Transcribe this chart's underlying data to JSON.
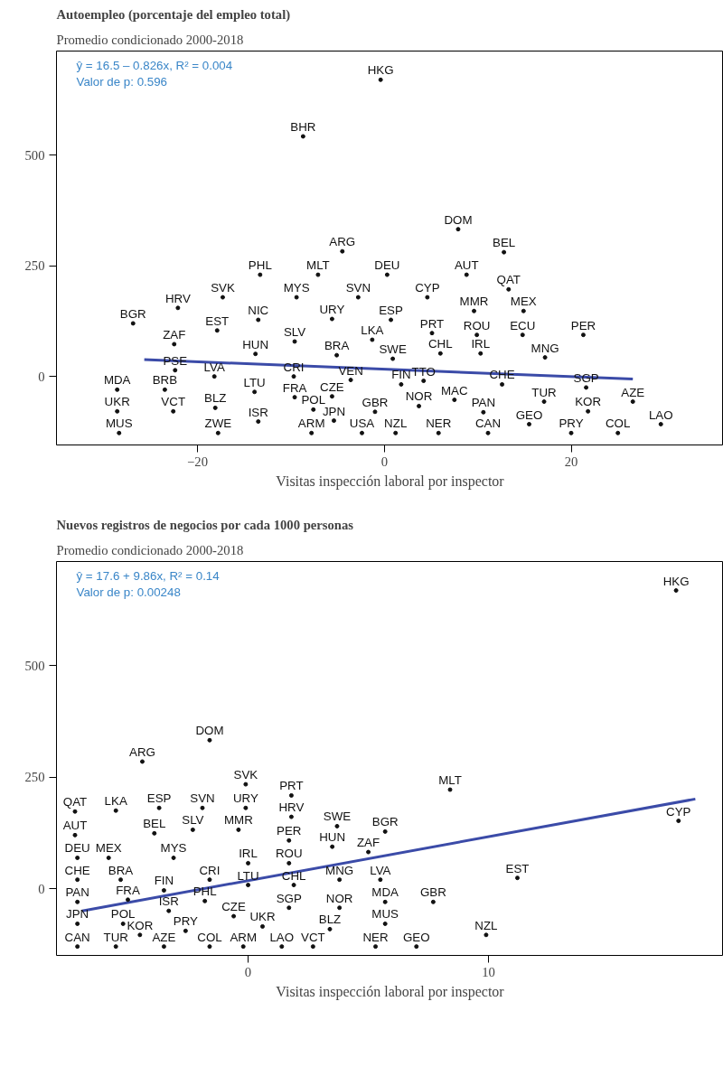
{
  "chart_data": [
    {
      "type": "scatter",
      "title": "Autoempleo (porcentaje del empleo total)",
      "subtitle": "Promedio condicionado 2000-2018",
      "xlabel": "Visitas inspección laboral por inspector",
      "xlim": [
        -35.1,
        36.3
      ],
      "ylim": [
        -155,
        736
      ],
      "xticks": [
        -20,
        0,
        20
      ],
      "yticks": [
        0,
        250,
        500
      ],
      "grid": false,
      "marker": "circle",
      "annotations": [
        "ŷ = 16.5 – 0.826x, R² = 0.004",
        "Valor de p: 0.596"
      ],
      "series": [
        {
          "type": "line",
          "color": "#3b4ba8",
          "marker": "none",
          "x": [
            -25.7,
            26.6
          ],
          "values": [
            38,
            -6
          ]
        },
        {
          "name": "HKG",
          "x": [
            -0.4
          ],
          "values": [
            671
          ]
        },
        {
          "name": "BHR",
          "x": [
            -8.7
          ],
          "values": [
            543
          ]
        },
        {
          "name": "DOM",
          "x": [
            7.9
          ],
          "values": [
            333
          ]
        },
        {
          "name": "ARG",
          "x": [
            -4.5
          ],
          "values": [
            283
          ]
        },
        {
          "name": "BEL",
          "x": [
            12.8
          ],
          "values": [
            281
          ]
        },
        {
          "name": "PHL",
          "x": [
            -13.3
          ],
          "values": [
            230
          ]
        },
        {
          "name": "MLT",
          "x": [
            -7.1
          ],
          "values": [
            230
          ]
        },
        {
          "name": "DEU",
          "x": [
            0.3
          ],
          "values": [
            230
          ]
        },
        {
          "name": "AUT",
          "x": [
            8.8
          ],
          "values": [
            230
          ]
        },
        {
          "name": "SVK",
          "x": [
            -17.3
          ],
          "values": [
            179
          ]
        },
        {
          "name": "MYS",
          "x": [
            -9.4
          ],
          "values": [
            179
          ]
        },
        {
          "name": "SVN",
          "x": [
            -2.8
          ],
          "values": [
            179
          ]
        },
        {
          "name": "CYP",
          "x": [
            4.6
          ],
          "values": [
            179
          ]
        },
        {
          "name": "QAT",
          "x": [
            13.3
          ],
          "values": [
            197
          ]
        },
        {
          "name": "HRV",
          "x": [
            -22.1
          ],
          "values": [
            155
          ]
        },
        {
          "name": "NIC",
          "x": [
            -13.5
          ],
          "values": [
            128
          ]
        },
        {
          "name": "URY",
          "x": [
            -5.6
          ],
          "values": [
            130
          ]
        },
        {
          "name": "MMR",
          "x": [
            9.6
          ],
          "values": [
            148
          ]
        },
        {
          "name": "MEX",
          "x": [
            14.9
          ],
          "values": [
            148
          ]
        },
        {
          "name": "BGR",
          "x": [
            -26.9
          ],
          "values": [
            120
          ]
        },
        {
          "name": "EST",
          "x": [
            -17.9
          ],
          "values": [
            104
          ]
        },
        {
          "name": "ESP",
          "x": [
            0.7
          ],
          "values": [
            128
          ]
        },
        {
          "name": "ECU",
          "x": [
            14.8
          ],
          "values": [
            94
          ]
        },
        {
          "name": "PER",
          "x": [
            21.3
          ],
          "values": [
            94
          ]
        },
        {
          "name": "ZAF",
          "x": [
            -22.5
          ],
          "values": [
            73
          ]
        },
        {
          "name": "SLV",
          "x": [
            -9.6
          ],
          "values": [
            79
          ]
        },
        {
          "name": "LKA",
          "x": [
            -1.3
          ],
          "values": [
            83
          ]
        },
        {
          "name": "PRT",
          "x": [
            5.1
          ],
          "values": [
            98
          ]
        },
        {
          "name": "ROU",
          "x": [
            9.9
          ],
          "values": [
            94
          ]
        },
        {
          "name": "HUN",
          "x": [
            -13.8
          ],
          "values": [
            51
          ]
        },
        {
          "name": "BRA",
          "x": [
            -5.1
          ],
          "values": [
            48
          ]
        },
        {
          "name": "SWE",
          "x": [
            0.9
          ],
          "values": [
            40
          ]
        },
        {
          "name": "CHL",
          "x": [
            6.0
          ],
          "values": [
            52
          ]
        },
        {
          "name": "IRL",
          "x": [
            10.3
          ],
          "values": [
            52
          ]
        },
        {
          "name": "MNG",
          "x": [
            17.2
          ],
          "values": [
            43
          ]
        },
        {
          "name": "PSE",
          "x": [
            -22.4
          ],
          "values": [
            14
          ]
        },
        {
          "name": "LVA",
          "x": [
            -18.2
          ],
          "values": [
            0
          ]
        },
        {
          "name": "CRI",
          "x": [
            -9.7
          ],
          "values": [
            0
          ]
        },
        {
          "name": "VEN",
          "x": [
            -3.6
          ],
          "values": [
            -8
          ]
        },
        {
          "name": "FIN",
          "x": [
            1.8
          ],
          "values": [
            -18
          ]
        },
        {
          "name": "TTO",
          "x": [
            4.2
          ],
          "values": [
            -10
          ]
        },
        {
          "name": "CHE",
          "x": [
            12.6
          ],
          "values": [
            -18
          ]
        },
        {
          "name": "SGP",
          "x": [
            21.6
          ],
          "values": [
            -25
          ]
        },
        {
          "name": "MDA",
          "x": [
            -28.6
          ],
          "values": [
            -30
          ]
        },
        {
          "name": "BRB",
          "x": [
            -23.5
          ],
          "values": [
            -30
          ]
        },
        {
          "name": "LTU",
          "x": [
            -13.9
          ],
          "values": [
            -35
          ]
        },
        {
          "name": "FRA",
          "x": [
            -9.6
          ],
          "values": [
            -47
          ]
        },
        {
          "name": "CZE",
          "x": [
            -5.6
          ],
          "values": [
            -45
          ]
        },
        {
          "name": "MAC",
          "x": [
            7.5
          ],
          "values": [
            -53
          ]
        },
        {
          "name": "NOR",
          "x": [
            3.7
          ],
          "values": [
            -67
          ]
        },
        {
          "name": "TUR",
          "x": [
            17.1
          ],
          "values": [
            -57
          ]
        },
        {
          "name": "AZE",
          "x": [
            26.6
          ],
          "values": [
            -57
          ]
        },
        {
          "name": "UKR",
          "x": [
            -28.6
          ],
          "values": [
            -79
          ]
        },
        {
          "name": "VCT",
          "x": [
            -22.6
          ],
          "values": [
            -79
          ]
        },
        {
          "name": "BLZ",
          "x": [
            -18.1
          ],
          "values": [
            -71
          ]
        },
        {
          "name": "POL",
          "x": [
            -7.6
          ],
          "values": [
            -75
          ]
        },
        {
          "name": "PAN",
          "x": [
            10.6
          ],
          "values": [
            -81
          ]
        },
        {
          "name": "KOR",
          "x": [
            21.8
          ],
          "values": [
            -79
          ]
        },
        {
          "name": "ISR",
          "x": [
            -13.5
          ],
          "values": [
            -102
          ]
        },
        {
          "name": "GBR",
          "x": [
            -1.0
          ],
          "values": [
            -80
          ]
        },
        {
          "name": "JPN",
          "x": [
            -5.4
          ],
          "values": [
            -100
          ]
        },
        {
          "name": "GEO",
          "x": [
            15.5
          ],
          "values": [
            -108
          ]
        },
        {
          "name": "LAO",
          "x": [
            29.6
          ],
          "values": [
            -108
          ]
        },
        {
          "name": "MUS",
          "x": [
            -28.4
          ],
          "values": [
            -128
          ]
        },
        {
          "name": "ZWE",
          "x": [
            -17.8
          ],
          "values": [
            -128
          ]
        },
        {
          "name": "ARM",
          "x": [
            -7.8
          ],
          "values": [
            -128
          ]
        },
        {
          "name": "USA",
          "x": [
            -2.4
          ],
          "values": [
            -128
          ]
        },
        {
          "name": "NZL",
          "x": [
            1.2
          ],
          "values": [
            -128
          ]
        },
        {
          "name": "NER",
          "x": [
            5.8
          ],
          "values": [
            -128
          ]
        },
        {
          "name": "CAN",
          "x": [
            11.1
          ],
          "values": [
            -128
          ]
        },
        {
          "name": "PRY",
          "x": [
            20.0
          ],
          "values": [
            -128
          ]
        },
        {
          "name": "COL",
          "x": [
            25.0
          ],
          "values": [
            -128
          ]
        }
      ]
    },
    {
      "type": "scatter",
      "title": "Nuevos registros de negocios por cada 1000 personas",
      "subtitle": "Promedio condicionado 2000-2018",
      "xlabel": "Visitas inspección laboral por inspector",
      "xlim": [
        -7.97,
        19.77
      ],
      "ylim": [
        -150,
        734
      ],
      "xticks": [
        0,
        10
      ],
      "yticks": [
        0,
        250,
        500
      ],
      "grid": false,
      "marker": "circle",
      "annotations": [
        "ŷ = 17.6 + 9.86x, R² = 0.14",
        "Valor de p: 0.00248"
      ],
      "series": [
        {
          "type": "line",
          "color": "#3b4ba8",
          "marker": "none",
          "x": [
            -6.9,
            18.6
          ],
          "values": [
            -50,
            201
          ]
        },
        {
          "name": "HKG",
          "x": [
            17.8
          ],
          "values": [
            669
          ]
        },
        {
          "name": "DOM",
          "x": [
            -1.6
          ],
          "values": [
            333
          ]
        },
        {
          "name": "ARG",
          "x": [
            -4.4
          ],
          "values": [
            285
          ]
        },
        {
          "name": "SVK",
          "x": [
            -0.1
          ],
          "values": [
            234
          ]
        },
        {
          "name": "PRT",
          "x": [
            1.8
          ],
          "values": [
            209
          ]
        },
        {
          "name": "MLT",
          "x": [
            8.4
          ],
          "values": [
            222
          ]
        },
        {
          "name": "QAT",
          "x": [
            -7.2
          ],
          "values": [
            173
          ]
        },
        {
          "name": "LKA",
          "x": [
            -5.5
          ],
          "values": [
            175
          ]
        },
        {
          "name": "ESP",
          "x": [
            -3.7
          ],
          "values": [
            181
          ]
        },
        {
          "name": "SVN",
          "x": [
            -1.9
          ],
          "values": [
            181
          ]
        },
        {
          "name": "URY",
          "x": [
            -0.1
          ],
          "values": [
            181
          ]
        },
        {
          "name": "HRV",
          "x": [
            1.8
          ],
          "values": [
            161
          ]
        },
        {
          "name": "AUT",
          "x": [
            -7.2
          ],
          "values": [
            120
          ]
        },
        {
          "name": "BEL",
          "x": [
            -3.9
          ],
          "values": [
            124
          ]
        },
        {
          "name": "SLV",
          "x": [
            -2.3
          ],
          "values": [
            132
          ]
        },
        {
          "name": "MMR",
          "x": [
            -0.4
          ],
          "values": [
            132
          ]
        },
        {
          "name": "PER",
          "x": [
            1.7
          ],
          "values": [
            108
          ]
        },
        {
          "name": "SWE",
          "x": [
            3.7
          ],
          "values": [
            140
          ]
        },
        {
          "name": "BGR",
          "x": [
            5.7
          ],
          "values": [
            128
          ]
        },
        {
          "name": "CYP",
          "x": [
            17.9
          ],
          "values": [
            152
          ]
        },
        {
          "name": "DEU",
          "x": [
            -7.1
          ],
          "values": [
            69
          ]
        },
        {
          "name": "MEX",
          "x": [
            -5.8
          ],
          "values": [
            69
          ]
        },
        {
          "name": "MYS",
          "x": [
            -3.1
          ],
          "values": [
            69
          ]
        },
        {
          "name": "IRL",
          "x": [
            0.0
          ],
          "values": [
            57
          ]
        },
        {
          "name": "ROU",
          "x": [
            1.7
          ],
          "values": [
            57
          ]
        },
        {
          "name": "HUN",
          "x": [
            3.5
          ],
          "values": [
            94
          ]
        },
        {
          "name": "ZAF",
          "x": [
            5.0
          ],
          "values": [
            82
          ]
        },
        {
          "name": "CHE",
          "x": [
            -7.1
          ],
          "values": [
            20
          ]
        },
        {
          "name": "BRA",
          "x": [
            -5.3
          ],
          "values": [
            20
          ]
        },
        {
          "name": "CRI",
          "x": [
            -1.6
          ],
          "values": [
            20
          ]
        },
        {
          "name": "MNG",
          "x": [
            3.8
          ],
          "values": [
            20
          ]
        },
        {
          "name": "LVA",
          "x": [
            5.5
          ],
          "values": [
            20
          ]
        },
        {
          "name": "EST",
          "x": [
            11.2
          ],
          "values": [
            24
          ]
        },
        {
          "name": "FIN",
          "x": [
            -3.5
          ],
          "values": [
            -4
          ]
        },
        {
          "name": "LTU",
          "x": [
            0.0
          ],
          "values": [
            8
          ]
        },
        {
          "name": "CHL",
          "x": [
            1.9
          ],
          "values": [
            8
          ]
        },
        {
          "name": "PAN",
          "x": [
            -7.1
          ],
          "values": [
            -30
          ]
        },
        {
          "name": "FRA",
          "x": [
            -5.0
          ],
          "values": [
            -25
          ]
        },
        {
          "name": "PHL",
          "x": [
            -1.8
          ],
          "values": [
            -28
          ]
        },
        {
          "name": "SGP",
          "x": [
            1.7
          ],
          "values": [
            -43
          ]
        },
        {
          "name": "NOR",
          "x": [
            3.8
          ],
          "values": [
            -43
          ]
        },
        {
          "name": "MDA",
          "x": [
            5.7
          ],
          "values": [
            -30
          ]
        },
        {
          "name": "GBR",
          "x": [
            7.7
          ],
          "values": [
            -30
          ]
        },
        {
          "name": "CZE",
          "x": [
            -0.6
          ],
          "values": [
            -62
          ]
        },
        {
          "name": "ISR",
          "x": [
            -3.3
          ],
          "values": [
            -50
          ]
        },
        {
          "name": "JPN",
          "x": [
            -7.1
          ],
          "values": [
            -79
          ]
        },
        {
          "name": "POL",
          "x": [
            -5.2
          ],
          "values": [
            -79
          ]
        },
        {
          "name": "MUS",
          "x": [
            5.7
          ],
          "values": [
            -79
          ]
        },
        {
          "name": "BLZ",
          "x": [
            3.4
          ],
          "values": [
            -91
          ]
        },
        {
          "name": "UKR",
          "x": [
            0.6
          ],
          "values": [
            -85
          ]
        },
        {
          "name": "KOR",
          "x": [
            -4.5
          ],
          "values": [
            -104
          ]
        },
        {
          "name": "PRY",
          "x": [
            -2.6
          ],
          "values": [
            -95
          ]
        },
        {
          "name": "NZL",
          "x": [
            9.9
          ],
          "values": [
            -104
          ]
        },
        {
          "name": "CAN",
          "x": [
            -7.1
          ],
          "values": [
            -130
          ]
        },
        {
          "name": "TUR",
          "x": [
            -5.5
          ],
          "values": [
            -130
          ]
        },
        {
          "name": "AZE",
          "x": [
            -3.5
          ],
          "values": [
            -130
          ]
        },
        {
          "name": "COL",
          "x": [
            -1.6
          ],
          "values": [
            -130
          ]
        },
        {
          "name": "ARM",
          "x": [
            -0.2
          ],
          "values": [
            -130
          ]
        },
        {
          "name": "LAO",
          "x": [
            1.4
          ],
          "values": [
            -130
          ]
        },
        {
          "name": "VCT",
          "x": [
            2.7
          ],
          "values": [
            -130
          ]
        },
        {
          "name": "NER",
          "x": [
            5.3
          ],
          "values": [
            -130
          ]
        },
        {
          "name": "GEO",
          "x": [
            7.0
          ],
          "values": [
            -130
          ]
        }
      ]
    }
  ]
}
